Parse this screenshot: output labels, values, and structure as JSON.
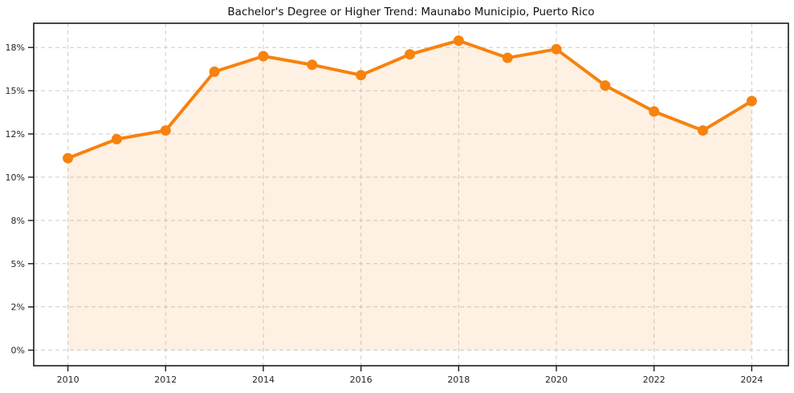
{
  "chart_data": {
    "type": "area",
    "title": "Bachelor's Degree or Higher Trend: Maunabo Municipio, Puerto Rico",
    "xlabel": "",
    "ylabel": "",
    "x": [
      2010,
      2011,
      2012,
      2013,
      2014,
      2015,
      2016,
      2017,
      2018,
      2019,
      2020,
      2021,
      2022,
      2023,
      2024
    ],
    "values": [
      11.1,
      12.2,
      12.7,
      16.1,
      17.0,
      16.5,
      15.9,
      17.1,
      17.9,
      16.9,
      17.4,
      15.3,
      13.8,
      12.7,
      14.4
    ],
    "unit": "%",
    "xlim": [
      2009.3,
      2024.75
    ],
    "ylim": [
      -0.9,
      18.9
    ],
    "y_ticks": [
      {
        "value": 0,
        "label": "0%"
      },
      {
        "value": 2.5,
        "label": "2%"
      },
      {
        "value": 5,
        "label": "5%"
      },
      {
        "value": 7.5,
        "label": "8%"
      },
      {
        "value": 10,
        "label": "10%"
      },
      {
        "value": 12.5,
        "label": "12%"
      },
      {
        "value": 15,
        "label": "15%"
      },
      {
        "value": 17.5,
        "label": "18%"
      }
    ],
    "x_ticks": [
      {
        "value": 2010,
        "label": "2010"
      },
      {
        "value": 2012,
        "label": "2012"
      },
      {
        "value": 2014,
        "label": "2014"
      },
      {
        "value": 2016,
        "label": "2016"
      },
      {
        "value": 2018,
        "label": "2018"
      },
      {
        "value": 2020,
        "label": "2020"
      },
      {
        "value": 2022,
        "label": "2022"
      },
      {
        "value": 2024,
        "label": "2024"
      }
    ],
    "grid": true,
    "grid_style": "dashed",
    "legend_position": "none",
    "marker": "circle",
    "colors": {
      "line": "#f7820e",
      "marker": "#f7820e",
      "fill": "rgba(247,130,14,0.12)",
      "grid": "#cccccc",
      "axis": "#1a1a1a",
      "tick_label": "#262626",
      "title": "#111111",
      "background": "#ffffff"
    }
  }
}
